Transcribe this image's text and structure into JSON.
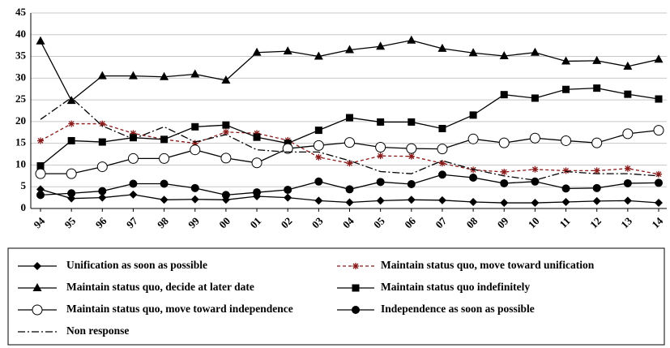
{
  "chart_data": {
    "type": "line",
    "categories": [
      "94",
      "95",
      "96",
      "97",
      "98",
      "99",
      "00",
      "01",
      "02",
      "03",
      "04",
      "05",
      "06",
      "07",
      "08",
      "09",
      "10",
      "11",
      "12",
      "13",
      "14"
    ],
    "ylim": [
      0,
      45
    ],
    "yticks": [
      0,
      5,
      10,
      15,
      20,
      25,
      30,
      35,
      40,
      45
    ],
    "grid": true,
    "legend": "bottom",
    "series": [
      {
        "name": "Unification as soon as possible",
        "color": "#000000",
        "marker": "diamond",
        "dash": "solid",
        "values": [
          4.4,
          2.3,
          2.5,
          3.2,
          2.0,
          2.1,
          2.0,
          2.8,
          2.5,
          1.8,
          1.4,
          1.8,
          2.0,
          1.9,
          1.5,
          1.3,
          1.3,
          1.5,
          1.7,
          1.8,
          1.3
        ]
      },
      {
        "name": "Maintain status quo, move toward unification",
        "color": "#8b1a1a",
        "marker": "asterisk",
        "dash": "dashed",
        "values": [
          15.6,
          19.5,
          19.5,
          17.3,
          15.9,
          15.0,
          17.6,
          17.3,
          15.7,
          11.8,
          10.4,
          12.1,
          12.0,
          10.4,
          8.9,
          8.4,
          9.0,
          8.7,
          8.7,
          9.2,
          7.9
        ]
      },
      {
        "name": "Maintain status quo, decide at later date",
        "color": "#000000",
        "marker": "triangle",
        "dash": "solid",
        "values": [
          38.5,
          24.8,
          30.5,
          30.5,
          30.3,
          30.9,
          29.5,
          35.9,
          36.2,
          35.0,
          36.5,
          37.3,
          38.7,
          36.8,
          35.8,
          35.1,
          35.9,
          33.9,
          34.0,
          32.7,
          34.3
        ]
      },
      {
        "name": "Maintain status quo indefinitely",
        "color": "#000000",
        "marker": "square",
        "dash": "solid",
        "values": [
          9.8,
          15.6,
          15.3,
          16.3,
          15.9,
          18.8,
          19.2,
          16.4,
          15.0,
          18.0,
          20.9,
          19.9,
          19.9,
          18.4,
          21.5,
          26.2,
          25.4,
          27.4,
          27.7,
          26.3,
          25.2
        ]
      },
      {
        "name": "Maintain status quo, move toward independence",
        "color": "#000000",
        "marker": "open-circle",
        "dash": "solid",
        "values": [
          8.0,
          8.0,
          9.6,
          11.5,
          11.5,
          13.5,
          11.6,
          10.5,
          13.8,
          14.5,
          15.2,
          14.1,
          13.8,
          13.7,
          16.0,
          15.1,
          16.2,
          15.6,
          15.1,
          17.2,
          18.0
        ]
      },
      {
        "name": "Independence as soon as possible",
        "color": "#000000",
        "marker": "circle",
        "dash": "solid",
        "values": [
          3.1,
          3.5,
          4.0,
          5.7,
          5.7,
          4.7,
          3.1,
          3.7,
          4.3,
          6.2,
          4.4,
          6.1,
          5.6,
          7.8,
          7.1,
          5.8,
          6.2,
          4.6,
          4.7,
          5.8,
          5.9
        ]
      },
      {
        "name": "Non response",
        "color": "#000000",
        "marker": "none",
        "dash": "dashdot",
        "values": [
          20.5,
          25.5,
          19.0,
          16.0,
          18.8,
          15.3,
          17.0,
          13.5,
          13.0,
          13.0,
          11.0,
          8.5,
          8.0,
          11.0,
          9.0,
          7.5,
          6.5,
          8.5,
          8.0,
          8.0,
          7.5
        ]
      }
    ]
  }
}
